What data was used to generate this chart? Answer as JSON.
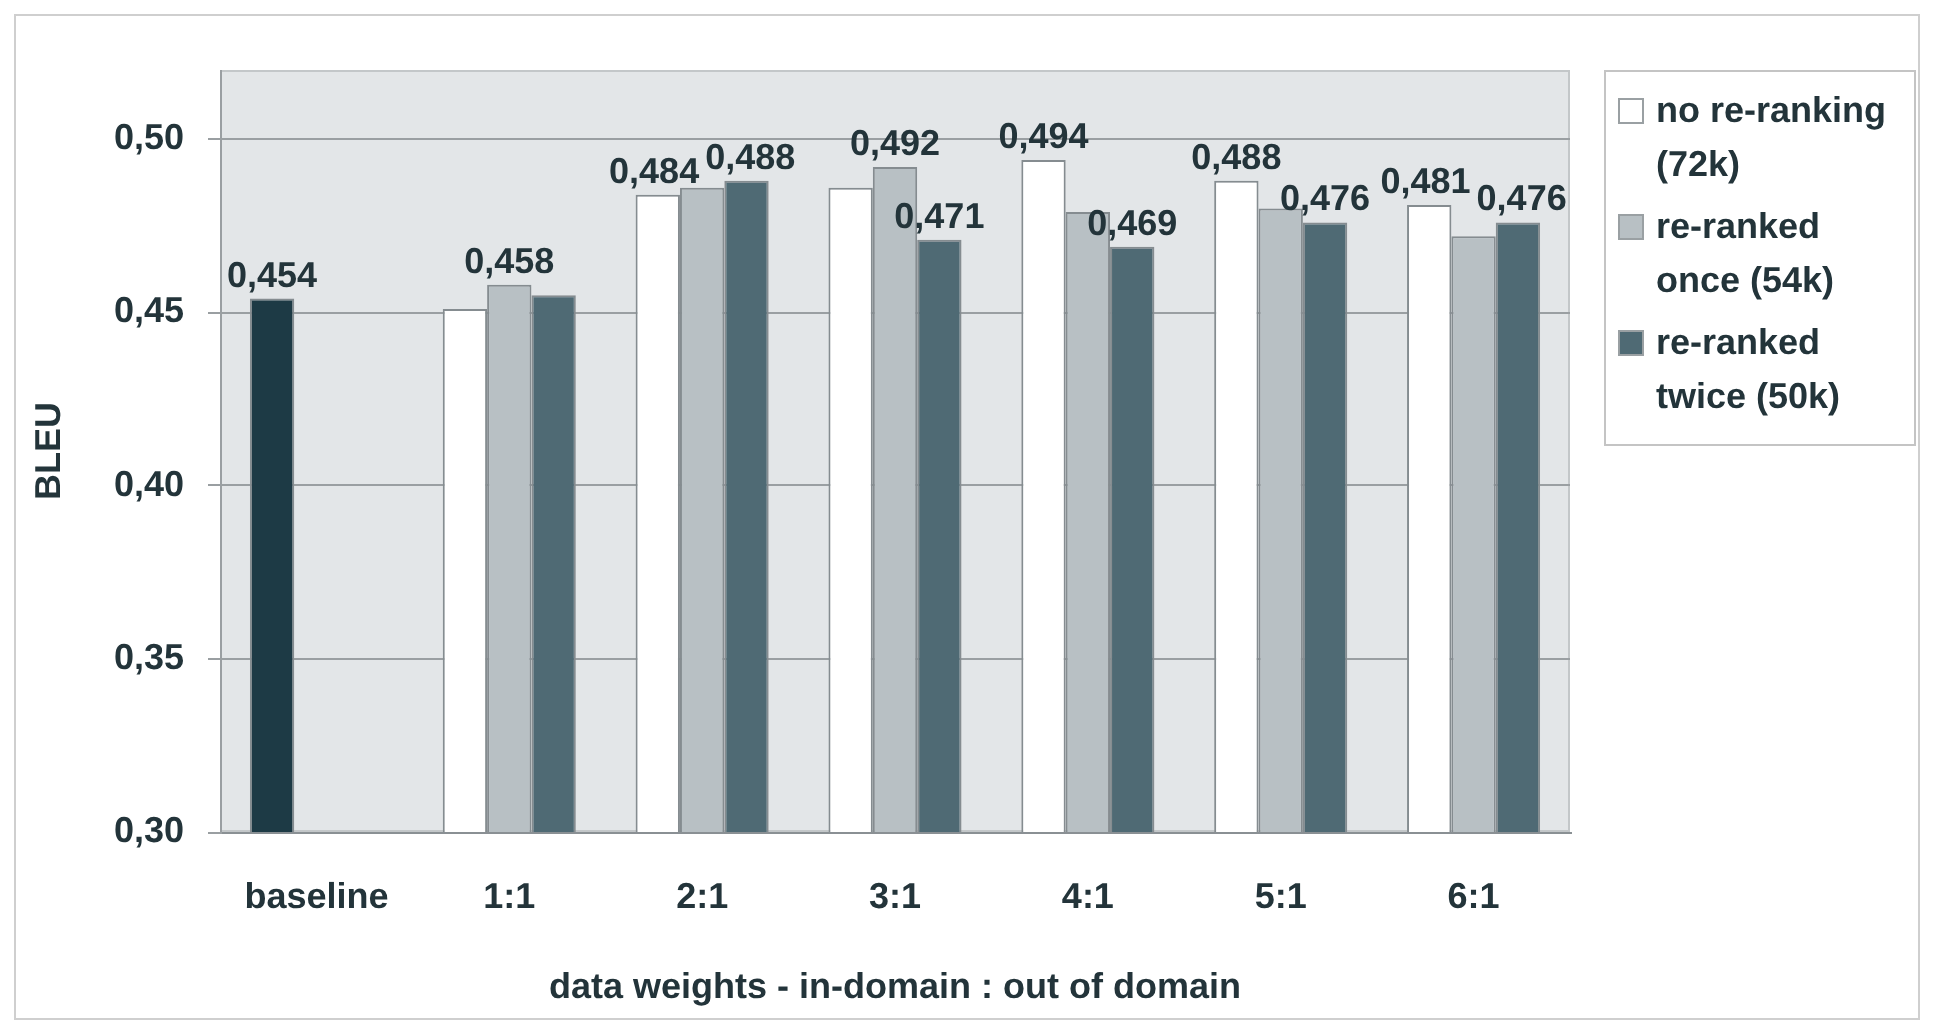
{
  "chart_data": {
    "type": "bar",
    "xlabel": "data weights - in-domain : out of domain",
    "ylabel": "BLEU",
    "categories": [
      "baseline",
      "1:1",
      "2:1",
      "3:1",
      "4:1",
      "5:1",
      "6:1"
    ],
    "series": [
      {
        "name": "no re-ranking (72k)",
        "color": "#ffffff",
        "colors": [
          "#1d3a45",
          "#ffffff",
          "#ffffff",
          "#ffffff",
          "#ffffff",
          "#ffffff",
          "#ffffff"
        ],
        "values": [
          0.454,
          0.451,
          0.484,
          0.486,
          0.494,
          0.488,
          0.481
        ],
        "value_labels": [
          "0,454",
          null,
          "0,484",
          null,
          "0,494",
          "0,488",
          "0,481"
        ]
      },
      {
        "name": "re-ranked once (54k)",
        "color": "#b8c0c4",
        "values": [
          null,
          0.458,
          0.486,
          0.492,
          0.479,
          0.48,
          0.472
        ],
        "value_labels": [
          null,
          "0,458",
          null,
          "0,492",
          null,
          null,
          null
        ]
      },
      {
        "name": "re-ranked twice (50k)",
        "color": "#4f6a74",
        "values": [
          null,
          0.455,
          0.488,
          0.471,
          0.469,
          0.476,
          0.476
        ],
        "value_labels": [
          null,
          null,
          "0,488",
          "0,471",
          "0,469",
          "0,476",
          "0,476"
        ]
      }
    ],
    "ylim": [
      0.3,
      0.52
    ],
    "yticks": [
      {
        "value": 0.3,
        "label": "0,30"
      },
      {
        "value": 0.35,
        "label": "0,35"
      },
      {
        "value": 0.4,
        "label": "0,40"
      },
      {
        "value": 0.45,
        "label": "0,45"
      },
      {
        "value": 0.5,
        "label": "0,50"
      }
    ],
    "grid": "y",
    "legend": "top right"
  }
}
